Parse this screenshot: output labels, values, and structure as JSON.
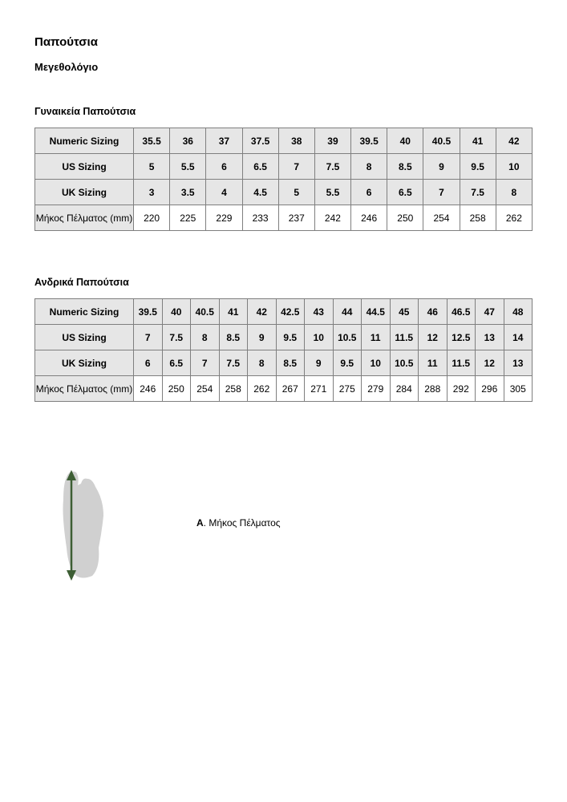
{
  "title": "Παπούτσια",
  "subtitle": "Μεγεθολόγιο",
  "women": {
    "heading": "Γυναικεία Παπούτσια",
    "rows": [
      {
        "label": "Numeric Sizing",
        "values": [
          "35.5",
          "36",
          "37",
          "37.5",
          "38",
          "39",
          "39.5",
          "40",
          "40.5",
          "41",
          "42"
        ]
      },
      {
        "label": "US Sizing",
        "values": [
          "5",
          "5.5",
          "6",
          "6.5",
          "7",
          "7.5",
          "8",
          "8.5",
          "9",
          "9.5",
          "10"
        ]
      },
      {
        "label": "UK Sizing",
        "values": [
          "3",
          "3.5",
          "4",
          "4.5",
          "5",
          "5.5",
          "6",
          "6.5",
          "7",
          "7.5",
          "8"
        ]
      },
      {
        "label": "Μήκος Πέλματος (mm)",
        "values": [
          "220",
          "225",
          "229",
          "233",
          "237",
          "242",
          "246",
          "250",
          "254",
          "258",
          "262"
        ]
      }
    ]
  },
  "men": {
    "heading": "Ανδρικά Παπούτσια",
    "rows": [
      {
        "label": "Numeric Sizing",
        "values": [
          "39.5",
          "40",
          "40.5",
          "41",
          "42",
          "42.5",
          "43",
          "44",
          "44.5",
          "45",
          "46",
          "46.5",
          "47",
          "48"
        ]
      },
      {
        "label": "US Sizing",
        "values": [
          "7",
          "7.5",
          "8",
          "8.5",
          "9",
          "9.5",
          "10",
          "10.5",
          "11",
          "11.5",
          "12",
          "12.5",
          "13",
          "14"
        ]
      },
      {
        "label": "UK Sizing",
        "values": [
          "6",
          "6.5",
          "7",
          "7.5",
          "8",
          "8.5",
          "9",
          "9.5",
          "10",
          "10.5",
          "11",
          "11.5",
          "12",
          "13"
        ]
      },
      {
        "label": "Μήκος Πέλματος (mm)",
        "values": [
          "246",
          "250",
          "254",
          "258",
          "262",
          "267",
          "271",
          "275",
          "279",
          "284",
          "288",
          "292",
          "296",
          "305"
        ]
      }
    ]
  },
  "diagram": {
    "letter": "A",
    "caption": ". Μήκος Πέλματος",
    "foot_color": "#d0d0d0",
    "arrow_color": "#3d5e34"
  }
}
